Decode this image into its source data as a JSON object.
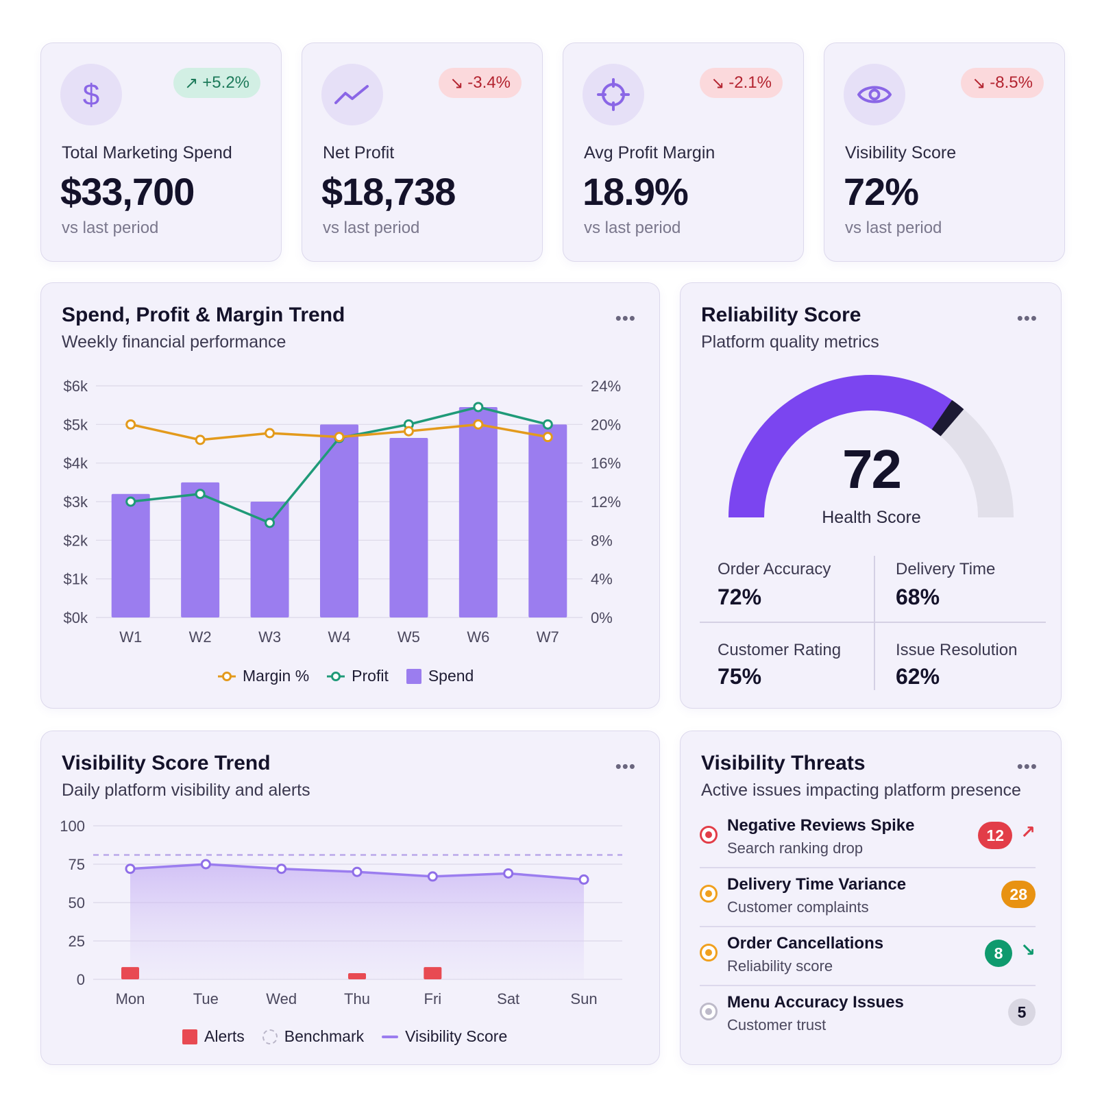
{
  "kpis": [
    {
      "icon": "dollar-icon",
      "label": "Total Marketing Spend",
      "value": "$33,700",
      "delta": "+5.2%",
      "delta_dir": "up",
      "sub": "vs last period"
    },
    {
      "icon": "trend-icon",
      "label": "Net Profit",
      "value": "$18,738",
      "delta": "-3.4%",
      "delta_dir": "down",
      "sub": "vs last period"
    },
    {
      "icon": "target-icon",
      "label": "Avg Profit Margin",
      "value": "18.9%",
      "delta": "-2.1%",
      "delta_dir": "down",
      "sub": "vs last period"
    },
    {
      "icon": "eye-icon",
      "label": "Visibility Score",
      "value": "72%",
      "delta": "-8.5%",
      "delta_dir": "down",
      "sub": "vs last period"
    }
  ],
  "trend_card": {
    "title": "Spend, Profit & Margin Trend",
    "subtitle": "Weekly financial performance",
    "more": "•••"
  },
  "reliability": {
    "title": "Reliability Score",
    "subtitle": "Platform quality metrics",
    "more": "•••",
    "score": "72",
    "score_value": 72,
    "score_label": "Health Score",
    "metrics": [
      {
        "label": "Order Accuracy",
        "value": "72%"
      },
      {
        "label": "Delivery Time",
        "value": "68%"
      },
      {
        "label": "Customer Rating",
        "value": "75%"
      },
      {
        "label": "Issue Resolution",
        "value": "62%"
      }
    ],
    "colors": {
      "fill": "#7b45f0",
      "marker": "#1c1a33",
      "track": "#e2e0ea"
    }
  },
  "visibility_card": {
    "title": "Visibility Score Trend",
    "subtitle": "Daily platform visibility and alerts",
    "more": "•••"
  },
  "threats": {
    "title": "Visibility Threats",
    "subtitle": "Active issues impacting platform presence",
    "more": "•••",
    "items": [
      {
        "title": "Negative Reviews Spike",
        "sub": "Search ranking drop",
        "count": "12",
        "dot_color": "#e23d48",
        "badge_bg": "#e23d48",
        "badge_fg": "#ffffff",
        "arrow": "↗",
        "arrow_color": "#e23d48"
      },
      {
        "title": "Delivery Time Variance",
        "sub": "Customer complaints",
        "count": "28",
        "dot_color": "#f0a01e",
        "badge_bg": "#e89212",
        "badge_fg": "#ffffff",
        "arrow": "",
        "arrow_color": "#e89212"
      },
      {
        "title": "Order Cancellations",
        "sub": "Reliability score",
        "count": "8",
        "dot_color": "#f0a01e",
        "badge_bg": "#0f9a6e",
        "badge_fg": "#ffffff",
        "arrow": "↘",
        "arrow_color": "#0f9a6e"
      },
      {
        "title": "Menu Accuracy Issues",
        "sub": "Customer trust",
        "count": "5",
        "dot_color": "#bdbac9",
        "badge_bg": "#d9d7e2",
        "badge_fg": "#14122a",
        "arrow": "",
        "arrow_color": "#9a97a8"
      }
    ]
  },
  "chart_data": [
    {
      "type": "bar",
      "title": "Spend, Profit & Margin Trend",
      "subtitle": "Weekly financial performance",
      "categories": [
        "W1",
        "W2",
        "W3",
        "W4",
        "W5",
        "W6",
        "W7"
      ],
      "y_left": {
        "ticks": [
          "$0k",
          "$1k",
          "$2k",
          "$3k",
          "$4k",
          "$5k",
          "$6k"
        ],
        "range": [
          0,
          6000
        ]
      },
      "y_right": {
        "ticks": [
          "0%",
          "4%",
          "8%",
          "12%",
          "16%",
          "20%",
          "24%"
        ],
        "range": [
          0,
          24
        ]
      },
      "series": [
        {
          "name": "Spend",
          "kind": "bar",
          "axis": "left",
          "color": "#9b7def",
          "values": [
            3200,
            3500,
            3000,
            5000,
            4650,
            5450,
            5000
          ]
        },
        {
          "name": "Profit",
          "kind": "line",
          "axis": "left",
          "color": "#1f9a78",
          "values": [
            3000,
            3200,
            2450,
            4650,
            5000,
            5450,
            5000
          ]
        },
        {
          "name": "Margin %",
          "kind": "line",
          "axis": "right",
          "color": "#e39a1c",
          "values": [
            20,
            18.4,
            19.1,
            18.7,
            19.3,
            20,
            18.7
          ]
        }
      ],
      "legend": [
        "Margin %",
        "Profit",
        "Spend"
      ],
      "grid": true,
      "legend_position": "bottom"
    },
    {
      "type": "area",
      "title": "Visibility Score Trend",
      "subtitle": "Daily platform visibility and alerts",
      "categories": [
        "Mon",
        "Tue",
        "Wed",
        "Thu",
        "Fri",
        "Sat",
        "Sun"
      ],
      "y": {
        "ticks": [
          "0",
          "25",
          "50",
          "75",
          "100"
        ],
        "range": [
          0,
          100
        ]
      },
      "series": [
        {
          "name": "Visibility Score",
          "kind": "area",
          "color": "#9b7def",
          "values": [
            72,
            75,
            72,
            70,
            67,
            69,
            65
          ]
        },
        {
          "name": "Alerts",
          "kind": "bar",
          "color": "#e84a52",
          "values": [
            8,
            0,
            0,
            4,
            8,
            0,
            0
          ]
        },
        {
          "name": "Benchmark",
          "kind": "dashed",
          "color": "#b9a8ea",
          "value": 81
        }
      ],
      "legend": [
        "Alerts",
        "Benchmark",
        "Visibility Score"
      ],
      "grid": true,
      "legend_position": "bottom"
    }
  ]
}
